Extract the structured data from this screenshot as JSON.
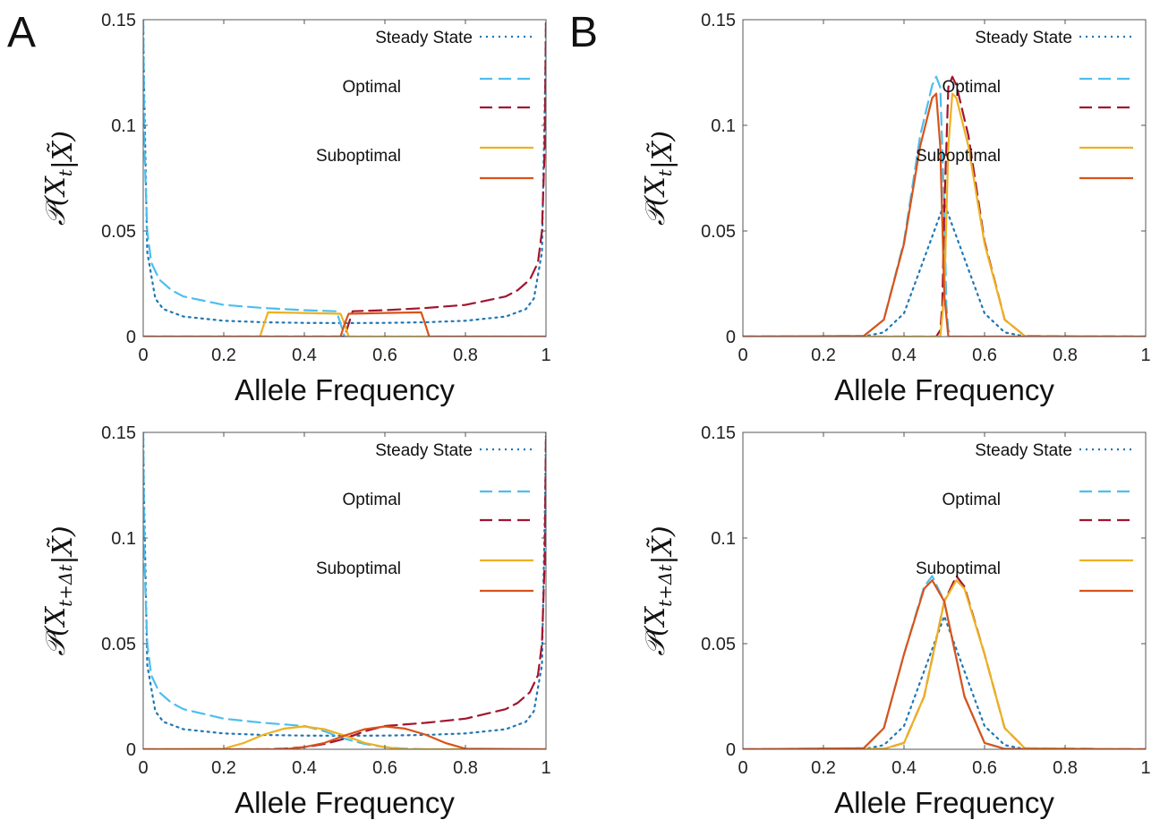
{
  "panel_labels": [
    "A",
    "B"
  ],
  "colors": {
    "steady": "#1f77b4",
    "optimal_a": "#4dbeee",
    "optimal_b": "#a2142f",
    "subopt_a": "#edb120",
    "subopt_b": "#d95319"
  },
  "legend": {
    "steady_state": "Steady State",
    "optimal": "Optimal",
    "suboptimal": "Suboptimal"
  },
  "chart_data": [
    {
      "panel": "A",
      "type": "line",
      "xlabel": "Allele Frequency",
      "ylabel": "P(X_t | X~)",
      "xlim": [
        0,
        1
      ],
      "ylim": [
        0,
        0.15
      ],
      "xticks": [
        "0",
        "0.2",
        "0.4",
        "0.6",
        "0.8",
        "1"
      ],
      "yticks": [
        "0",
        "0.05",
        "0.1",
        "0.15"
      ],
      "series": [
        {
          "name": "Steady State",
          "style": "steady",
          "color": "#1f77b4",
          "x": [
            0,
            0.002,
            0.01,
            0.03,
            0.05,
            0.1,
            0.2,
            0.3,
            0.4,
            0.5,
            0.6,
            0.7,
            0.8,
            0.9,
            0.95,
            0.97,
            0.99,
            0.998,
            1
          ],
          "y": [
            0.15,
            0.12,
            0.04,
            0.018,
            0.013,
            0.0095,
            0.0075,
            0.0068,
            0.0065,
            0.0064,
            0.0065,
            0.0068,
            0.0075,
            0.0095,
            0.013,
            0.018,
            0.04,
            0.12,
            0.15
          ]
        },
        {
          "name": "Optimal",
          "style": "dash",
          "color": "#4dbeee",
          "x": [
            0,
            0.003,
            0.01,
            0.02,
            0.04,
            0.07,
            0.1,
            0.2,
            0.3,
            0.4,
            0.48,
            0.5,
            0.52,
            0.6,
            0.8,
            1
          ],
          "y": [
            0.15,
            0.09,
            0.05,
            0.035,
            0.027,
            0.022,
            0.019,
            0.015,
            0.0135,
            0.0125,
            0.012,
            0.0,
            0.0,
            0.0,
            0.0,
            0.0
          ]
        },
        {
          "name": "Optimal",
          "style": "dash",
          "color": "#a2142f",
          "x": [
            0,
            0.2,
            0.4,
            0.48,
            0.5,
            0.52,
            0.6,
            0.7,
            0.8,
            0.9,
            0.93,
            0.96,
            0.98,
            0.99,
            0.997,
            1
          ],
          "y": [
            0.0,
            0.0,
            0.0,
            0.0,
            0.0,
            0.012,
            0.0125,
            0.0135,
            0.015,
            0.019,
            0.022,
            0.027,
            0.035,
            0.05,
            0.09,
            0.15
          ]
        },
        {
          "name": "Suboptimal",
          "style": "solid",
          "color": "#edb120",
          "x": [
            0,
            0.29,
            0.3,
            0.31,
            0.4,
            0.49,
            0.5,
            0.51,
            0.6,
            1
          ],
          "y": [
            0.0,
            0.0,
            0.006,
            0.0115,
            0.0112,
            0.0108,
            0.006,
            0.0,
            0.0,
            0.0
          ]
        },
        {
          "name": "Suboptimal",
          "style": "solid",
          "color": "#d95319",
          "x": [
            0,
            0.49,
            0.5,
            0.51,
            0.6,
            0.69,
            0.7,
            0.71,
            1
          ],
          "y": [
            0.0,
            0.0,
            0.006,
            0.0108,
            0.0112,
            0.0115,
            0.006,
            0.0,
            0.0
          ]
        }
      ]
    },
    {
      "panel": "B",
      "type": "line",
      "xlabel": "Allele Frequency",
      "ylabel": "P(X_t | X~)",
      "xlim": [
        0,
        1
      ],
      "ylim": [
        0,
        0.15
      ],
      "xticks": [
        "0",
        "0.2",
        "0.4",
        "0.6",
        "0.8",
        "1"
      ],
      "yticks": [
        "0",
        "0.05",
        "0.1",
        "0.15"
      ],
      "series": [
        {
          "name": "Steady State",
          "style": "steady",
          "color": "#1f77b4",
          "x": [
            0,
            0.3,
            0.35,
            0.4,
            0.45,
            0.5,
            0.55,
            0.6,
            0.65,
            0.7,
            1
          ],
          "y": [
            0,
            0.0001,
            0.002,
            0.011,
            0.037,
            0.063,
            0.037,
            0.011,
            0.002,
            0.0001,
            0
          ]
        },
        {
          "name": "Optimal",
          "style": "dash",
          "color": "#4dbeee",
          "x": [
            0,
            0.3,
            0.35,
            0.4,
            0.44,
            0.47,
            0.48,
            0.49,
            0.5,
            0.505,
            0.51,
            0.52,
            1
          ],
          "y": [
            0,
            0.0003,
            0.008,
            0.045,
            0.095,
            0.119,
            0.123,
            0.118,
            0.06,
            0.015,
            0.003,
            0,
            0
          ]
        },
        {
          "name": "Optimal",
          "style": "dash",
          "color": "#a2142f",
          "x": [
            0,
            0.48,
            0.49,
            0.495,
            0.5,
            0.51,
            0.52,
            0.53,
            0.56,
            0.6,
            0.65,
            0.7,
            1
          ],
          "y": [
            0,
            0,
            0.003,
            0.015,
            0.06,
            0.118,
            0.123,
            0.119,
            0.095,
            0.045,
            0.008,
            0.0003,
            0
          ]
        },
        {
          "name": "Suboptimal",
          "style": "solid",
          "color": "#edb120",
          "x": [
            0,
            0.49,
            0.5,
            0.51,
            0.52,
            0.53,
            0.56,
            0.6,
            0.65,
            0.7,
            1
          ],
          "y": [
            0,
            0,
            0.02,
            0.09,
            0.115,
            0.113,
            0.09,
            0.044,
            0.008,
            0.0003,
            0
          ]
        },
        {
          "name": "Suboptimal",
          "style": "solid",
          "color": "#d95319",
          "x": [
            0,
            0.3,
            0.35,
            0.4,
            0.44,
            0.47,
            0.48,
            0.49,
            0.5,
            0.51,
            1
          ],
          "y": [
            0,
            0.0003,
            0.008,
            0.044,
            0.09,
            0.113,
            0.115,
            0.09,
            0.02,
            0,
            0
          ]
        }
      ]
    },
    {
      "panel": "A",
      "type": "line",
      "xlabel": "Allele Frequency",
      "ylabel": "P(X_{t+Δt} | X~)",
      "xlim": [
        0,
        1
      ],
      "ylim": [
        0,
        0.15
      ],
      "xticks": [
        "0",
        "0.2",
        "0.4",
        "0.6",
        "0.8",
        "1"
      ],
      "yticks": [
        "0",
        "0.05",
        "0.1",
        "0.15"
      ],
      "series": [
        {
          "name": "Steady State",
          "style": "steady",
          "color": "#1f77b4",
          "x": [
            0,
            0.002,
            0.01,
            0.03,
            0.05,
            0.1,
            0.2,
            0.3,
            0.4,
            0.5,
            0.6,
            0.7,
            0.8,
            0.9,
            0.95,
            0.97,
            0.99,
            0.998,
            1
          ],
          "y": [
            0.15,
            0.12,
            0.04,
            0.018,
            0.013,
            0.0095,
            0.0075,
            0.0068,
            0.0065,
            0.0064,
            0.0065,
            0.0068,
            0.0075,
            0.0095,
            0.013,
            0.018,
            0.04,
            0.12,
            0.15
          ]
        },
        {
          "name": "Optimal",
          "style": "dash",
          "color": "#4dbeee",
          "x": [
            0,
            0.003,
            0.01,
            0.02,
            0.04,
            0.07,
            0.1,
            0.2,
            0.3,
            0.4,
            0.45,
            0.5,
            0.55,
            0.6,
            0.65,
            0.7,
            0.8,
            1
          ],
          "y": [
            0.15,
            0.09,
            0.05,
            0.035,
            0.027,
            0.022,
            0.019,
            0.0145,
            0.0125,
            0.011,
            0.0085,
            0.005,
            0.0025,
            0.001,
            0.0003,
            0,
            0,
            0
          ]
        },
        {
          "name": "Optimal",
          "style": "dash",
          "color": "#a2142f",
          "x": [
            0,
            0.2,
            0.3,
            0.35,
            0.4,
            0.45,
            0.5,
            0.55,
            0.6,
            0.7,
            0.8,
            0.9,
            0.93,
            0.96,
            0.98,
            0.99,
            0.997,
            1
          ],
          "y": [
            0,
            0,
            0,
            0.0003,
            0.001,
            0.0025,
            0.005,
            0.0085,
            0.011,
            0.0125,
            0.0145,
            0.019,
            0.022,
            0.027,
            0.035,
            0.05,
            0.09,
            0.15
          ]
        },
        {
          "name": "Suboptimal",
          "style": "solid",
          "color": "#edb120",
          "x": [
            0,
            0.2,
            0.25,
            0.3,
            0.35,
            0.4,
            0.45,
            0.5,
            0.55,
            0.6,
            0.65,
            1
          ],
          "y": [
            0,
            0.0003,
            0.003,
            0.007,
            0.0098,
            0.0108,
            0.0095,
            0.0065,
            0.003,
            0.001,
            0,
            0
          ]
        },
        {
          "name": "Suboptimal",
          "style": "solid",
          "color": "#d95319",
          "x": [
            0,
            0.35,
            0.4,
            0.45,
            0.5,
            0.55,
            0.6,
            0.65,
            0.7,
            0.75,
            0.8,
            1
          ],
          "y": [
            0,
            0,
            0.001,
            0.003,
            0.0065,
            0.0095,
            0.0108,
            0.0098,
            0.007,
            0.003,
            0.0003,
            0
          ]
        }
      ]
    },
    {
      "panel": "B",
      "type": "line",
      "xlabel": "Allele Frequency",
      "ylabel": "P(X_{t+Δt} | X~)",
      "xlim": [
        0,
        1
      ],
      "ylim": [
        0,
        0.15
      ],
      "xticks": [
        "0",
        "0.2",
        "0.4",
        "0.6",
        "0.8",
        "1"
      ],
      "yticks": [
        "0",
        "0.05",
        "0.1",
        "0.15"
      ],
      "series": [
        {
          "name": "Steady State",
          "style": "steady",
          "color": "#1f77b4",
          "x": [
            0,
            0.3,
            0.35,
            0.4,
            0.45,
            0.5,
            0.55,
            0.6,
            0.65,
            0.7,
            1
          ],
          "y": [
            0,
            0.0001,
            0.002,
            0.011,
            0.037,
            0.063,
            0.037,
            0.011,
            0.002,
            0.0001,
            0
          ]
        },
        {
          "name": "Optimal",
          "style": "dash",
          "color": "#4dbeee",
          "x": [
            0,
            0.3,
            0.35,
            0.4,
            0.45,
            0.47,
            0.5,
            0.55,
            0.6,
            0.65,
            1
          ],
          "y": [
            0,
            0.0005,
            0.01,
            0.045,
            0.077,
            0.082,
            0.07,
            0.025,
            0.003,
            0.0002,
            0
          ]
        },
        {
          "name": "Optimal",
          "style": "dash",
          "color": "#a2142f",
          "x": [
            0,
            0.35,
            0.4,
            0.45,
            0.5,
            0.53,
            0.55,
            0.6,
            0.65,
            0.7,
            1
          ],
          "y": [
            0,
            0.0002,
            0.003,
            0.025,
            0.07,
            0.082,
            0.077,
            0.045,
            0.01,
            0.0005,
            0
          ]
        },
        {
          "name": "Suboptimal",
          "style": "solid",
          "color": "#edb120",
          "x": [
            0,
            0.35,
            0.4,
            0.45,
            0.5,
            0.53,
            0.55,
            0.6,
            0.65,
            0.7,
            1
          ],
          "y": [
            0,
            0.0002,
            0.003,
            0.025,
            0.07,
            0.08,
            0.076,
            0.045,
            0.01,
            0.0005,
            0
          ]
        },
        {
          "name": "Suboptimal",
          "style": "solid",
          "color": "#d95319",
          "x": [
            0,
            0.3,
            0.35,
            0.4,
            0.45,
            0.47,
            0.5,
            0.55,
            0.6,
            0.65,
            1
          ],
          "y": [
            0,
            0.0005,
            0.01,
            0.045,
            0.076,
            0.08,
            0.07,
            0.025,
            0.003,
            0.0002,
            0
          ]
        }
      ]
    }
  ]
}
